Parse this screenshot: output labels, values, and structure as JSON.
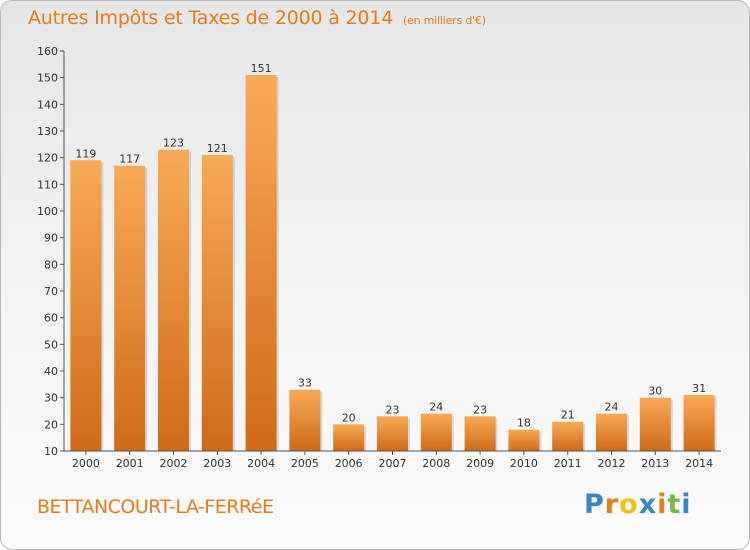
{
  "header": {
    "title": "Autres Impôts et Taxes de 2000 à 2014",
    "subtitle": "(en milliers d'€)"
  },
  "footer": {
    "commune": "BETTANCOURT-LA-FERRéE",
    "brand": "Proxiti",
    "brand_colors": [
      "#3a85c6",
      "#e87a17",
      "#e8c21a",
      "#3a85c6",
      "#e87a17",
      "#7ab648",
      "#3a85c6"
    ]
  },
  "colors": {
    "bar_top": "#f8aa56",
    "bar_bottom": "#cf6a18",
    "accent": "#e87a17",
    "axis": "#555555"
  },
  "chart_data": {
    "type": "bar",
    "title": "Autres Impôts et Taxes de 2000 à 2014",
    "subtitle": "(en milliers d'€)",
    "categories": [
      "2000",
      "2001",
      "2002",
      "2003",
      "2004",
      "2005",
      "2006",
      "2007",
      "2008",
      "2009",
      "2010",
      "2011",
      "2012",
      "2013",
      "2014"
    ],
    "values": [
      119,
      117,
      123,
      121,
      151,
      33,
      20,
      23,
      24,
      23,
      18,
      21,
      24,
      30,
      31
    ],
    "ylim": [
      10,
      160
    ],
    "yticks": [
      10,
      20,
      30,
      40,
      50,
      60,
      70,
      80,
      90,
      100,
      110,
      120,
      130,
      140,
      150,
      160
    ],
    "grid": false,
    "legend": "none"
  }
}
